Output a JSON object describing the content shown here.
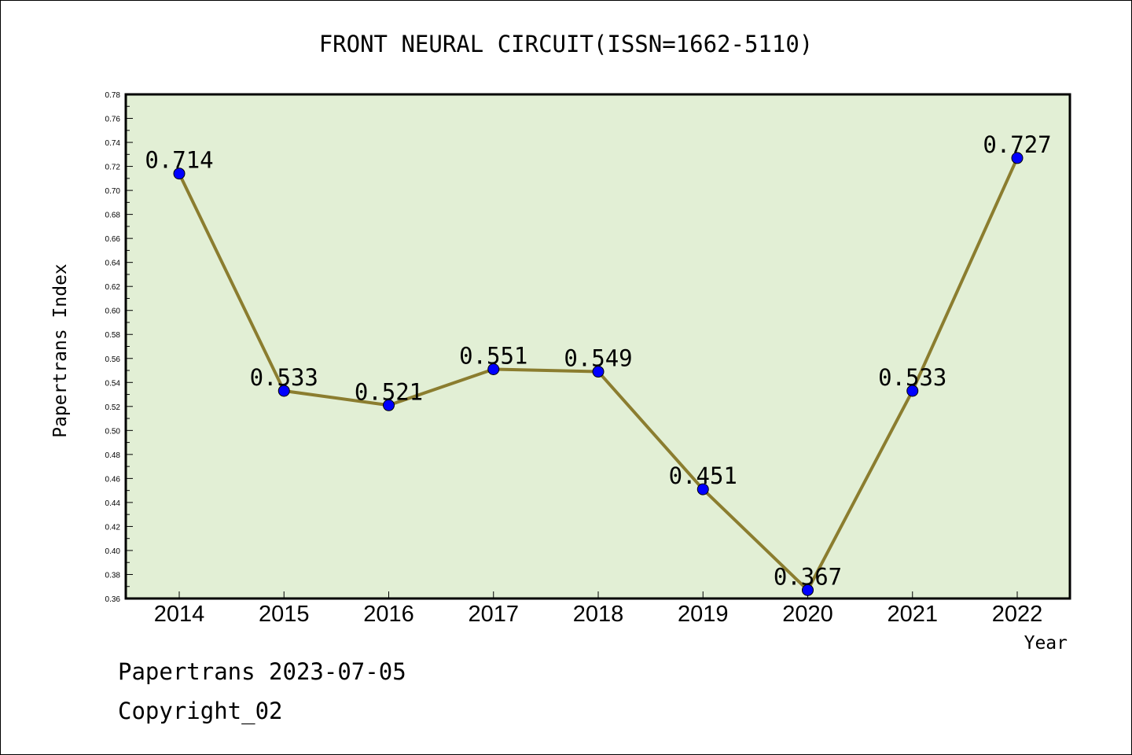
{
  "chart_data": {
    "type": "line",
    "title": "FRONT NEURAL CIRCUIT(ISSN=1662-5110)",
    "xlabel": "Year",
    "ylabel": "Papertrans Index",
    "categories": [
      "2014",
      "2015",
      "2016",
      "2017",
      "2018",
      "2019",
      "2020",
      "2021",
      "2022"
    ],
    "values": [
      0.714,
      0.533,
      0.521,
      0.551,
      0.549,
      0.451,
      0.367,
      0.533,
      0.727
    ],
    "data_labels": [
      "0.714",
      "0.533",
      "0.521",
      "0.551",
      "0.549",
      "0.451",
      "0.367",
      "0.533",
      "0.727"
    ],
    "ylim": [
      0.36,
      0.78
    ],
    "yticks": [
      "0.36",
      "0.38",
      "0.40",
      "0.42",
      "0.44",
      "0.46",
      "0.48",
      "0.50",
      "0.52",
      "0.54",
      "0.56",
      "0.58",
      "0.60",
      "0.62",
      "0.64",
      "0.66",
      "0.68",
      "0.70",
      "0.72",
      "0.74",
      "0.76",
      "0.78"
    ],
    "grid": false,
    "colors": {
      "plot_background": "#e2efd5",
      "line": "#8b7d2f",
      "marker": "#0000ff"
    }
  },
  "footer": {
    "line1": "Papertrans 2023-07-05",
    "line2": "Copyright_02"
  }
}
